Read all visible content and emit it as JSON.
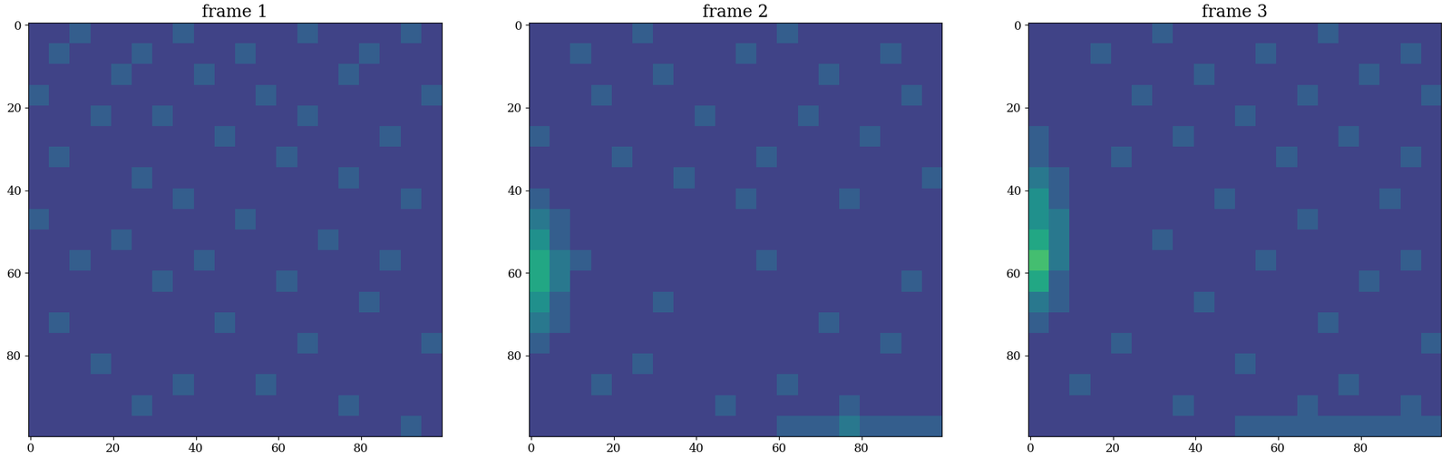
{
  "chart_data": [
    {
      "type": "heatmap",
      "title": "frame 1",
      "xlim": [
        -0.5,
        99.5
      ],
      "ylim": [
        99.5,
        -0.5
      ],
      "xticks": [
        0,
        20,
        40,
        60,
        80
      ],
      "yticks": [
        0,
        20,
        40,
        60,
        80
      ],
      "clim": [
        0,
        10
      ],
      "cells": [
        [
          2,
          2,
          3,
          2,
          2,
          2,
          2,
          3,
          2,
          2,
          2,
          2,
          2,
          3,
          2,
          2,
          2,
          2,
          3,
          2
        ],
        [
          2,
          3,
          2,
          2,
          2,
          3,
          2,
          2,
          2,
          2,
          3,
          2,
          2,
          2,
          2,
          2,
          3,
          2,
          2,
          2
        ],
        [
          2,
          2,
          2,
          2,
          3,
          2,
          2,
          2,
          3,
          2,
          2,
          2,
          2,
          2,
          2,
          3,
          2,
          2,
          2,
          2
        ],
        [
          3,
          2,
          2,
          2,
          2,
          2,
          2,
          2,
          2,
          2,
          2,
          3,
          2,
          2,
          2,
          2,
          2,
          2,
          2,
          3
        ],
        [
          2,
          2,
          2,
          3,
          2,
          2,
          3,
          2,
          2,
          2,
          2,
          2,
          2,
          3,
          2,
          2,
          2,
          2,
          2,
          2
        ],
        [
          2,
          2,
          2,
          2,
          2,
          2,
          2,
          2,
          2,
          3,
          2,
          2,
          2,
          2,
          2,
          2,
          2,
          3,
          2,
          2
        ],
        [
          2,
          3,
          2,
          2,
          2,
          2,
          2,
          2,
          2,
          2,
          2,
          2,
          3,
          2,
          2,
          2,
          2,
          2,
          2,
          2
        ],
        [
          2,
          2,
          2,
          2,
          2,
          3,
          2,
          2,
          2,
          2,
          2,
          2,
          2,
          2,
          2,
          3,
          2,
          2,
          2,
          2
        ],
        [
          2,
          2,
          2,
          2,
          2,
          2,
          2,
          3,
          2,
          2,
          2,
          2,
          2,
          2,
          2,
          2,
          2,
          2,
          3,
          2
        ],
        [
          3,
          2,
          2,
          2,
          2,
          2,
          2,
          2,
          2,
          2,
          3,
          2,
          2,
          2,
          2,
          2,
          2,
          2,
          2,
          2
        ],
        [
          2,
          2,
          2,
          2,
          3,
          2,
          2,
          2,
          2,
          2,
          2,
          2,
          2,
          2,
          3,
          2,
          2,
          2,
          2,
          2
        ],
        [
          2,
          2,
          3,
          2,
          2,
          2,
          2,
          2,
          3,
          2,
          2,
          2,
          2,
          2,
          2,
          2,
          2,
          3,
          2,
          2
        ],
        [
          2,
          2,
          2,
          2,
          2,
          2,
          3,
          2,
          2,
          2,
          2,
          2,
          3,
          2,
          2,
          2,
          2,
          2,
          2,
          2
        ],
        [
          2,
          2,
          2,
          2,
          2,
          2,
          2,
          2,
          2,
          2,
          2,
          2,
          2,
          2,
          2,
          2,
          3,
          2,
          2,
          2
        ],
        [
          2,
          3,
          2,
          2,
          2,
          2,
          2,
          2,
          2,
          3,
          2,
          2,
          2,
          2,
          2,
          2,
          2,
          2,
          2,
          2
        ],
        [
          2,
          2,
          2,
          2,
          2,
          2,
          2,
          2,
          2,
          2,
          2,
          2,
          2,
          3,
          2,
          2,
          2,
          2,
          2,
          3
        ],
        [
          2,
          2,
          2,
          3,
          2,
          2,
          2,
          2,
          2,
          2,
          2,
          2,
          2,
          2,
          2,
          2,
          2,
          2,
          2,
          2
        ],
        [
          2,
          2,
          2,
          2,
          2,
          2,
          2,
          3,
          2,
          2,
          2,
          3,
          2,
          2,
          2,
          2,
          2,
          2,
          2,
          2
        ],
        [
          2,
          2,
          2,
          2,
          2,
          3,
          2,
          2,
          2,
          2,
          2,
          2,
          2,
          2,
          2,
          3,
          2,
          2,
          2,
          2
        ],
        [
          2,
          2,
          2,
          2,
          2,
          2,
          2,
          2,
          2,
          2,
          2,
          2,
          2,
          2,
          2,
          2,
          2,
          2,
          3,
          2
        ]
      ]
    },
    {
      "type": "heatmap",
      "title": "frame 2",
      "xlim": [
        -0.5,
        99.5
      ],
      "ylim": [
        99.5,
        -0.5
      ],
      "xticks": [
        0,
        20,
        40,
        60,
        80
      ],
      "yticks": [
        0,
        20,
        40,
        60,
        80
      ],
      "clim": [
        0,
        10
      ],
      "cells": [
        [
          2,
          2,
          2,
          2,
          2,
          3,
          2,
          2,
          2,
          2,
          2,
          2,
          3,
          2,
          2,
          2,
          2,
          2,
          2,
          2
        ],
        [
          2,
          2,
          3,
          2,
          2,
          2,
          2,
          2,
          2,
          2,
          3,
          2,
          2,
          2,
          2,
          2,
          2,
          3,
          2,
          2
        ],
        [
          2,
          2,
          2,
          2,
          2,
          2,
          3,
          2,
          2,
          2,
          2,
          2,
          2,
          2,
          3,
          2,
          2,
          2,
          2,
          2
        ],
        [
          2,
          2,
          2,
          3,
          2,
          2,
          2,
          2,
          2,
          2,
          2,
          2,
          2,
          2,
          2,
          2,
          2,
          2,
          3,
          2
        ],
        [
          2,
          2,
          2,
          2,
          2,
          2,
          2,
          2,
          3,
          2,
          2,
          2,
          2,
          3,
          2,
          2,
          2,
          2,
          2,
          2
        ],
        [
          3,
          2,
          2,
          2,
          2,
          2,
          2,
          2,
          2,
          2,
          2,
          2,
          2,
          2,
          2,
          2,
          3,
          2,
          2,
          2
        ],
        [
          2,
          2,
          2,
          2,
          3,
          2,
          2,
          2,
          2,
          2,
          2,
          3,
          2,
          2,
          2,
          2,
          2,
          2,
          2,
          2
        ],
        [
          2,
          2,
          2,
          2,
          2,
          2,
          2,
          3,
          2,
          2,
          2,
          2,
          2,
          2,
          2,
          2,
          2,
          2,
          2,
          3
        ],
        [
          3,
          2,
          2,
          2,
          2,
          2,
          2,
          2,
          2,
          2,
          3,
          2,
          2,
          2,
          2,
          3,
          2,
          2,
          2,
          2
        ],
        [
          4,
          3,
          2,
          2,
          2,
          2,
          2,
          2,
          2,
          2,
          2,
          2,
          2,
          2,
          2,
          2,
          2,
          2,
          2,
          2
        ],
        [
          5,
          3,
          2,
          2,
          2,
          2,
          2,
          2,
          2,
          2,
          2,
          2,
          2,
          2,
          2,
          2,
          2,
          2,
          2,
          2
        ],
        [
          6,
          4,
          3,
          2,
          2,
          2,
          2,
          2,
          2,
          2,
          2,
          3,
          2,
          2,
          2,
          2,
          2,
          2,
          2,
          2
        ],
        [
          6,
          4,
          2,
          2,
          2,
          2,
          2,
          2,
          2,
          2,
          2,
          2,
          2,
          2,
          2,
          2,
          2,
          2,
          3,
          2
        ],
        [
          5,
          3,
          2,
          2,
          2,
          2,
          3,
          2,
          2,
          2,
          2,
          2,
          2,
          2,
          2,
          2,
          2,
          2,
          2,
          2
        ],
        [
          4,
          3,
          2,
          2,
          2,
          2,
          2,
          2,
          2,
          2,
          2,
          2,
          2,
          2,
          3,
          2,
          2,
          2,
          2,
          2
        ],
        [
          3,
          2,
          2,
          2,
          2,
          2,
          2,
          2,
          2,
          2,
          2,
          2,
          2,
          2,
          2,
          2,
          2,
          3,
          2,
          2
        ],
        [
          2,
          2,
          2,
          2,
          2,
          3,
          2,
          2,
          2,
          2,
          2,
          2,
          2,
          2,
          2,
          2,
          2,
          2,
          2,
          2
        ],
        [
          2,
          2,
          2,
          3,
          2,
          2,
          2,
          2,
          2,
          2,
          2,
          2,
          3,
          2,
          2,
          2,
          2,
          2,
          2,
          2
        ],
        [
          2,
          2,
          2,
          2,
          2,
          2,
          2,
          2,
          2,
          3,
          2,
          2,
          2,
          2,
          2,
          3,
          2,
          2,
          2,
          2
        ],
        [
          2,
          2,
          2,
          2,
          2,
          2,
          2,
          2,
          2,
          2,
          2,
          2,
          3,
          3,
          3,
          4,
          3,
          3,
          3,
          3
        ]
      ]
    },
    {
      "type": "heatmap",
      "title": "frame 3",
      "xlim": [
        -0.5,
        99.5
      ],
      "ylim": [
        99.5,
        -0.5
      ],
      "xticks": [
        0,
        20,
        40,
        60,
        80
      ],
      "yticks": [
        0,
        20,
        40,
        60,
        80
      ],
      "clim": [
        0,
        10
      ],
      "cells": [
        [
          2,
          2,
          2,
          2,
          2,
          2,
          3,
          2,
          2,
          2,
          2,
          2,
          2,
          2,
          3,
          2,
          2,
          2,
          2,
          2
        ],
        [
          2,
          2,
          2,
          3,
          2,
          2,
          2,
          2,
          2,
          2,
          2,
          3,
          2,
          2,
          2,
          2,
          2,
          2,
          3,
          2
        ],
        [
          2,
          2,
          2,
          2,
          2,
          2,
          2,
          2,
          3,
          2,
          2,
          2,
          2,
          2,
          2,
          2,
          3,
          2,
          2,
          2
        ],
        [
          2,
          2,
          2,
          2,
          2,
          3,
          2,
          2,
          2,
          2,
          2,
          2,
          2,
          3,
          2,
          2,
          2,
          2,
          2,
          3
        ],
        [
          2,
          2,
          2,
          2,
          2,
          2,
          2,
          2,
          2,
          2,
          3,
          2,
          2,
          2,
          2,
          2,
          2,
          2,
          2,
          2
        ],
        [
          3,
          2,
          2,
          2,
          2,
          2,
          2,
          3,
          2,
          2,
          2,
          2,
          2,
          2,
          2,
          3,
          2,
          2,
          2,
          2
        ],
        [
          3,
          2,
          2,
          2,
          3,
          2,
          2,
          2,
          2,
          2,
          2,
          2,
          3,
          2,
          2,
          2,
          2,
          2,
          3,
          2
        ],
        [
          4,
          3,
          2,
          2,
          2,
          2,
          2,
          2,
          2,
          2,
          2,
          2,
          2,
          2,
          2,
          2,
          2,
          2,
          2,
          2
        ],
        [
          5,
          3,
          2,
          2,
          2,
          2,
          2,
          2,
          2,
          3,
          2,
          2,
          2,
          2,
          2,
          2,
          2,
          3,
          2,
          2
        ],
        [
          5,
          4,
          2,
          2,
          2,
          2,
          2,
          2,
          2,
          2,
          2,
          2,
          2,
          3,
          2,
          2,
          2,
          2,
          2,
          2
        ],
        [
          6,
          4,
          2,
          2,
          2,
          2,
          3,
          2,
          2,
          2,
          2,
          2,
          2,
          2,
          2,
          2,
          2,
          2,
          2,
          2
        ],
        [
          7,
          4,
          2,
          2,
          2,
          2,
          2,
          2,
          2,
          2,
          2,
          3,
          2,
          2,
          2,
          2,
          2,
          2,
          3,
          2
        ],
        [
          6,
          3,
          2,
          2,
          2,
          2,
          2,
          2,
          2,
          2,
          2,
          2,
          2,
          2,
          2,
          2,
          3,
          2,
          2,
          2
        ],
        [
          4,
          3,
          2,
          2,
          2,
          2,
          2,
          2,
          3,
          2,
          2,
          2,
          2,
          2,
          2,
          2,
          2,
          2,
          2,
          2
        ],
        [
          3,
          2,
          2,
          2,
          2,
          2,
          2,
          2,
          2,
          2,
          2,
          2,
          2,
          2,
          3,
          2,
          2,
          2,
          2,
          2
        ],
        [
          2,
          2,
          2,
          2,
          3,
          2,
          2,
          2,
          2,
          2,
          2,
          2,
          2,
          2,
          2,
          2,
          2,
          2,
          2,
          3
        ],
        [
          2,
          2,
          2,
          2,
          2,
          2,
          2,
          2,
          2,
          2,
          3,
          2,
          2,
          2,
          2,
          2,
          2,
          2,
          2,
          2
        ],
        [
          2,
          2,
          3,
          2,
          2,
          2,
          2,
          2,
          2,
          2,
          2,
          2,
          2,
          2,
          2,
          3,
          2,
          2,
          2,
          2
        ],
        [
          2,
          2,
          2,
          2,
          2,
          2,
          2,
          3,
          2,
          2,
          2,
          2,
          2,
          3,
          2,
          2,
          2,
          2,
          3,
          2
        ],
        [
          2,
          2,
          2,
          2,
          2,
          2,
          2,
          2,
          2,
          2,
          3,
          3,
          3,
          3,
          3,
          3,
          3,
          3,
          3,
          3
        ]
      ]
    }
  ]
}
